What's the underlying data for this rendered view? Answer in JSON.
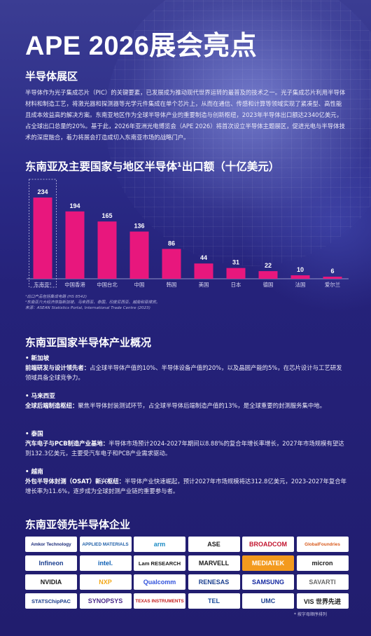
{
  "title": "APE 2026展会亮点",
  "section1": {
    "heading": "半导体展区",
    "paragraph": "半导体作为光子集成芯片（PIC）的关键要素，已发展成为推动现代世界运转的最普及的技术之一。光子集成芯片利用半导体材料和制造工艺，将激光器和探测器等光学元件集成在单个芯片上，从而在通信、传感和计算等领域实现了紧凑型、高性能且成本效益高的解决方案。东南亚地区作为全球半导体产业的重要制造与创新枢纽，2023年半导体出口额达2340亿美元，占全球出口总量的20%。基于此，2026年亚洲光电博览会（APE 2026）将首次设立半导体主题展区，促进光电与半导体技术的深度融合，着力将展会打造成切入东南亚市场的战略门户。"
  },
  "chart_data": {
    "type": "bar",
    "title": "东南亚及主要国家与地区半导体¹出口额（十亿美元）",
    "categories": [
      "东南亚²",
      "中国香港",
      "中国台北",
      "中国",
      "韩国",
      "美国",
      "日本",
      "德国",
      "法国",
      "爱尔兰"
    ],
    "values": [
      234,
      194,
      165,
      136,
      86,
      44,
      31,
      22,
      10,
      6
    ],
    "value_labels": [
      "234",
      "194",
      "165",
      "136",
      "86",
      "44",
      "31",
      "22",
      "10",
      "6"
    ],
    "highlight_first": true,
    "ylim": [
      0,
      234
    ],
    "bar_color": "#e8177d"
  },
  "chart_notes": [
    "¹出口产品包括集成电路 (HS 8542)",
    "²东南亚六大经济体指新加坡、马来西亚、泰国、印度尼西亚、越南和菲律宾。",
    "来源：ASEAN Statistics Portal, International Trade Centre (2023)"
  ],
  "section2": {
    "heading": "东南亚国家半导体产业概况",
    "countries": [
      {
        "name": "• 新加坡",
        "lead": "前端研发与设计领先者：",
        "text": "占全球半导体产值的10%、半导体设备产值的20%，以及晶圆产能的5%，在芯片设计与工艺研发领域具备全球竞争力。"
      },
      {
        "name": "• 马来西亚",
        "lead": "全球后端制造枢纽：",
        "text": "聚焦半导体封装测试环节，占全球半导体后端制造产值的13%，是全球重要的封测服务集中地。"
      },
      {
        "name": "• 泰国",
        "lead": "汽车电子与PCB制造产业基地：",
        "text": "半导体市场预计2024-2027年期间以8.88%的复合年增长率增长，2027年市场规模有望达到132.3亿美元，主要受汽车电子和PCB产业需求驱动。"
      },
      {
        "name": "• 越南",
        "lead": "外包半导体封测（OSAT）新兴枢纽：",
        "text": "半导体产业快速崛起，预计2027年市场规模将达312.8亿美元，2023-2027年复合年增长率为11.6%，逐步成为全球封测产业链的重要参与者。"
      }
    ]
  },
  "section3": {
    "heading": "东南亚领先半导体企业",
    "logos": [
      "Amkor Technology",
      "APPLIED MATERIALS",
      "arm",
      "ASE",
      "BROADCOM",
      "GlobalFoundries",
      "Infineon",
      "intel.",
      "Lam RESEARCH",
      "MARVELL",
      "MEDIATEK",
      "micron",
      "NVIDIA",
      "NXP",
      "Qualcomm",
      "RENESAS",
      "SAMSUNG",
      "SAVARTI",
      "STATSChipPAC",
      "SYNOPSYS",
      "TEXAS INSTRUMENTS",
      "TEL",
      "UMC",
      "VIS 世界先进"
    ],
    "sort_note": "* 按字母顺序排列"
  },
  "colors": {
    "accent": "#e8177d",
    "background": "#25227a"
  }
}
